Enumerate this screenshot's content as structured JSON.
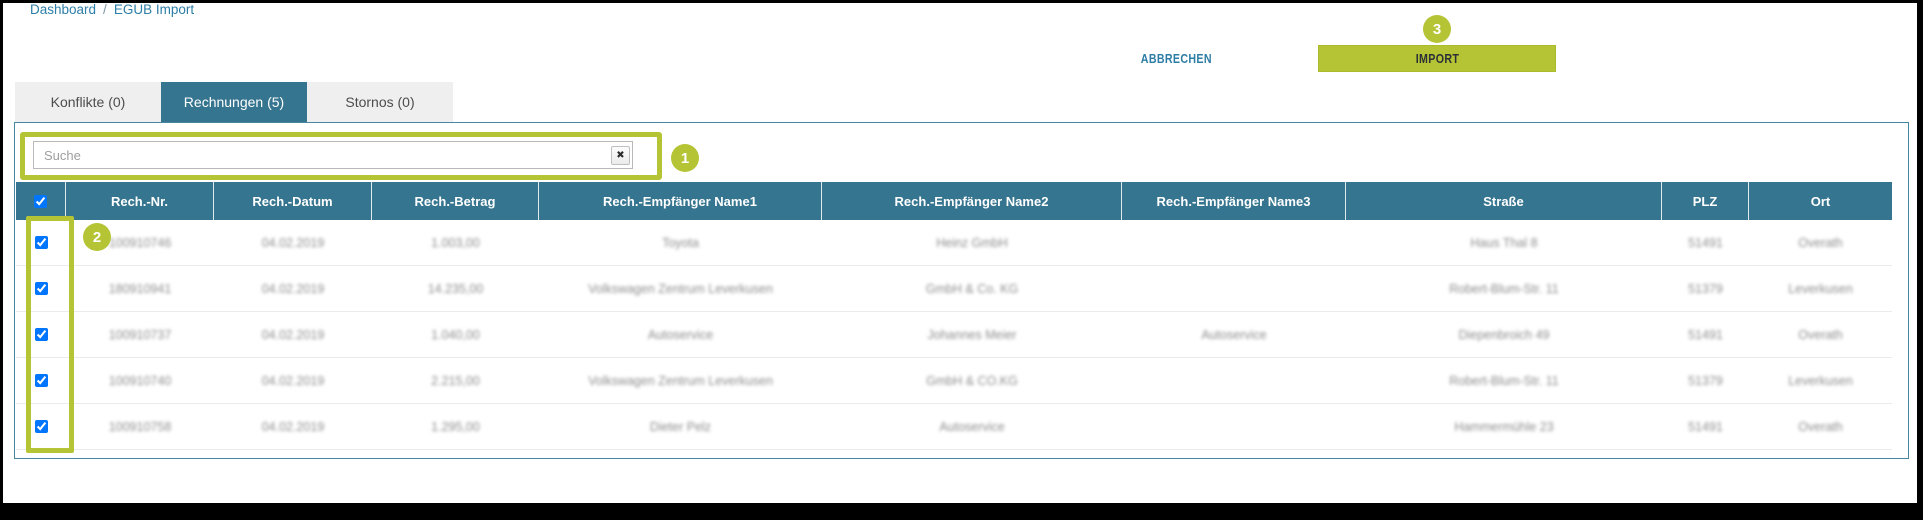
{
  "breadcrumb": {
    "items": [
      "Dashboard",
      "EGUB Import"
    ],
    "separator": "/"
  },
  "actions": {
    "cancel_label": "ABBRECHEN",
    "import_label": "IMPORT"
  },
  "annotations": {
    "color": "#b5c434",
    "steps": [
      {
        "label": "1",
        "target": "search-field"
      },
      {
        "label": "2",
        "target": "row-checkboxes"
      },
      {
        "label": "3",
        "target": "import-button"
      }
    ]
  },
  "tabs": [
    {
      "label": "Konflikte (0)",
      "active": false
    },
    {
      "label": "Rechnungen (5)",
      "active": true
    },
    {
      "label": "Stornos (0)",
      "active": false
    }
  ],
  "search": {
    "placeholder": "Suche",
    "value": "",
    "clear_icon": "✖"
  },
  "table": {
    "select_all_checked": true,
    "cells_blurred": true,
    "columns": [
      "Rech.-Nr.",
      "Rech.-Datum",
      "Rech.-Betrag",
      "Rech.-Empfänger Name1",
      "Rech.-Empfänger Name2",
      "Rech.-Empfänger Name3",
      "Straße",
      "PLZ",
      "Ort"
    ],
    "rows": [
      {
        "checked": true,
        "cells": [
          "100910746",
          "04.02.2019",
          "1.003,00",
          "Toyota",
          "Heinz GmbH",
          "",
          "Haus Thal 8",
          "51491",
          "Overath"
        ]
      },
      {
        "checked": true,
        "cells": [
          "180910941",
          "04.02.2019",
          "14.235,00",
          "Volkswagen Zentrum Leverkusen",
          "GmbH & Co. KG",
          "",
          "Robert-Blum-Str. 11",
          "51379",
          "Leverkusen"
        ]
      },
      {
        "checked": true,
        "cells": [
          "100910737",
          "04.02.2019",
          "1.040,00",
          "Autoservice",
          "Johannes Meier",
          "Autoservice",
          "Diepenbroich 49",
          "51491",
          "Overath"
        ]
      },
      {
        "checked": true,
        "cells": [
          "100910740",
          "04.02.2019",
          "2.215,00",
          "Volkswagen Zentrum Leverkusen",
          "GmbH & CO.KG",
          "",
          "Robert-Blum-Str. 11",
          "51379",
          "Leverkusen"
        ]
      },
      {
        "checked": true,
        "cells": [
          "100910758",
          "04.02.2019",
          "1.295,00",
          "Dieter Pelz",
          "Autoservice",
          "",
          "Hammermühle 23",
          "51491",
          "Overath"
        ]
      }
    ]
  },
  "colors": {
    "teal": "#36758f",
    "link": "#2d7ea8",
    "lime": "#b5c434",
    "panel_border": "#4886a0"
  }
}
